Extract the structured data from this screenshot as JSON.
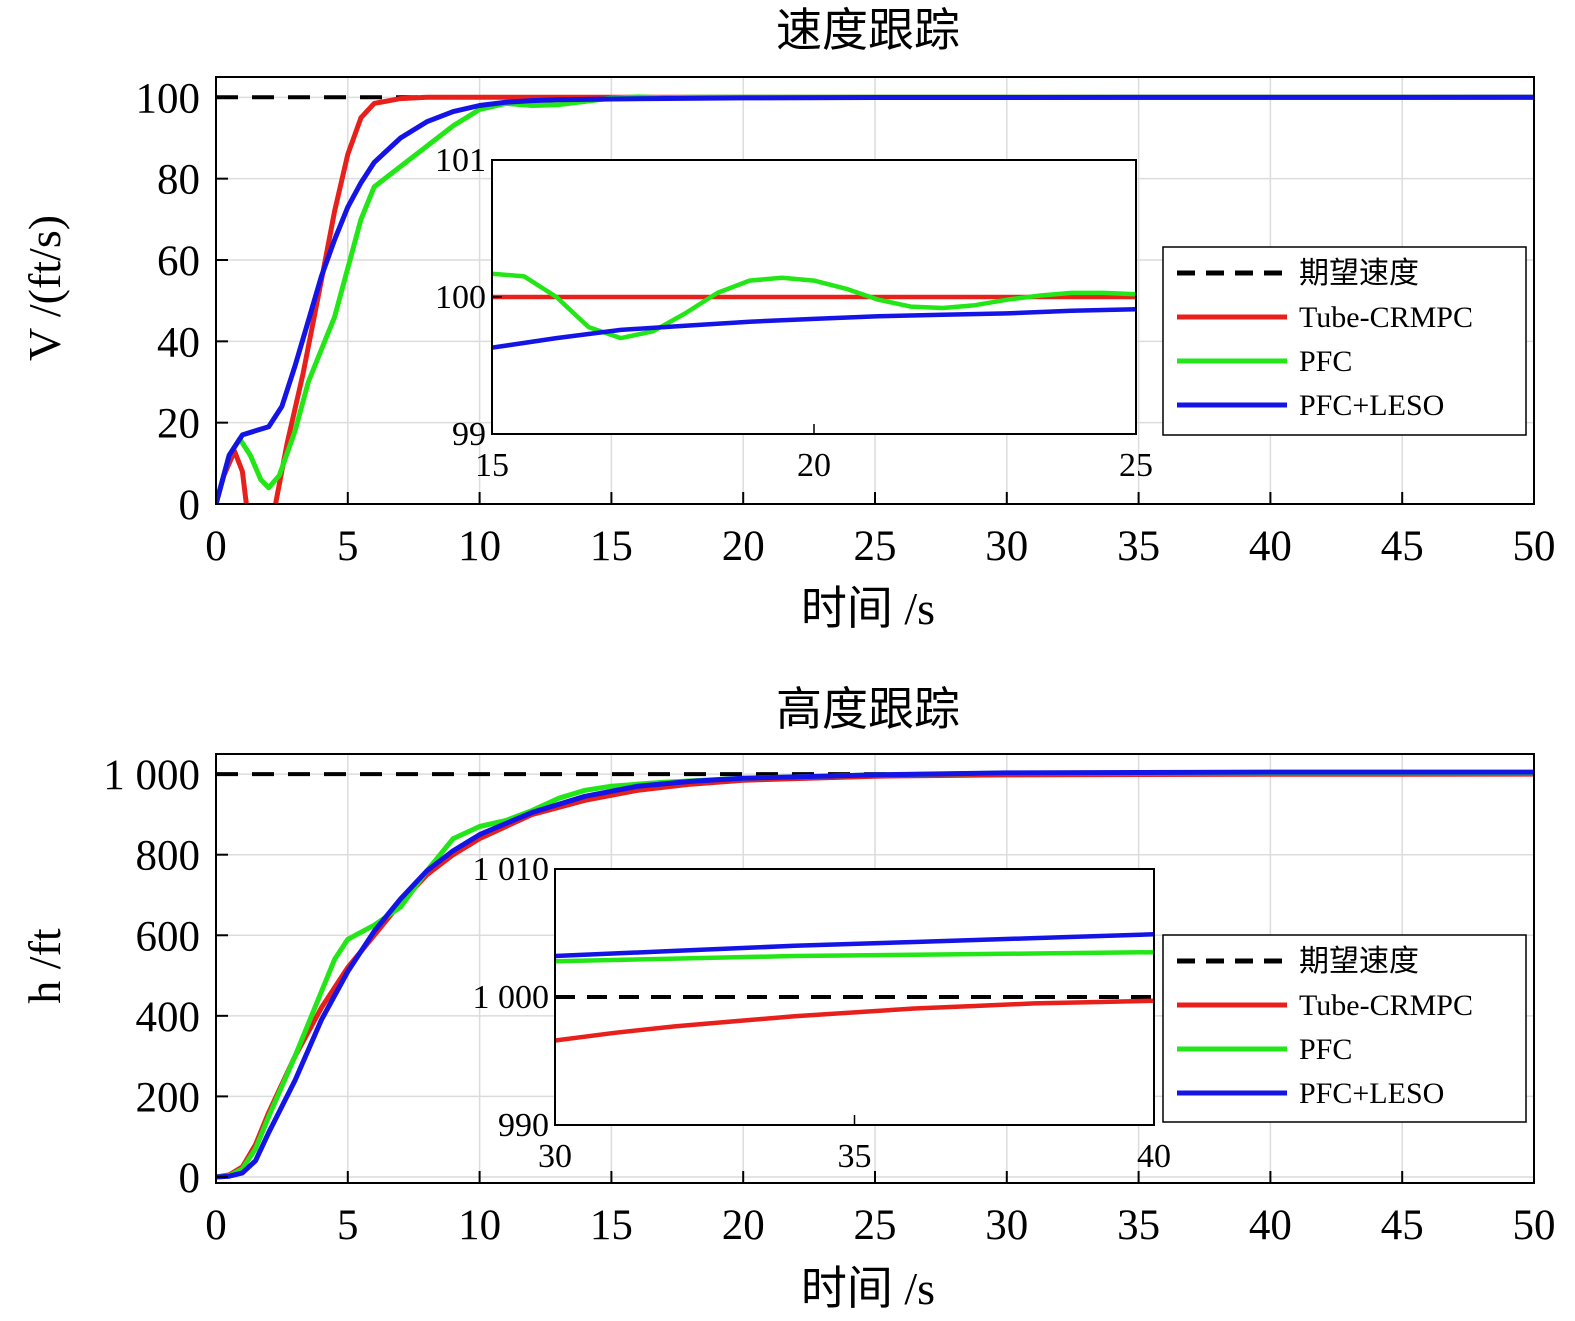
{
  "chart_data": [
    {
      "type": "line",
      "title": "速度跟踪",
      "xlabel": "时间 /s",
      "ylabel": "V /(ft/s)",
      "xlim": [
        0,
        50
      ],
      "ylim": [
        0,
        105
      ],
      "xticks": [
        "0",
        "5",
        "10",
        "15",
        "20",
        "25",
        "30",
        "35",
        "40",
        "45",
        "50"
      ],
      "yticks": [
        "0",
        "20",
        "40",
        "60",
        "80",
        "100"
      ],
      "grid": true,
      "legend": {
        "placement": "right",
        "entries": [
          "期望速度",
          "Tube-CRMPC",
          "PFC",
          "PFC+LESO"
        ]
      },
      "series": [
        {
          "name": "期望速度",
          "color": "#000000",
          "dash": true,
          "points": [
            [
              0,
              100
            ],
            [
              50,
              100
            ]
          ]
        },
        {
          "name": "Tube-CRMPC",
          "color": "#e8201b",
          "points": [
            [
              0,
              0
            ],
            [
              0.3,
              7
            ],
            [
              0.7,
              13
            ],
            [
              1.0,
              8
            ],
            [
              1.3,
              -8
            ],
            [
              1.6,
              -22
            ],
            [
              1.9,
              -18
            ],
            [
              2.2,
              -2
            ],
            [
              2.7,
              15
            ],
            [
              3.3,
              32
            ],
            [
              4.0,
              55
            ],
            [
              4.5,
              72
            ],
            [
              5.0,
              86
            ],
            [
              5.5,
              95
            ],
            [
              6.0,
              98.5
            ],
            [
              7.0,
              99.7
            ],
            [
              8.0,
              100
            ],
            [
              10,
              100
            ],
            [
              50,
              100
            ]
          ]
        },
        {
          "name": "PFC",
          "color": "#22e616",
          "points": [
            [
              0,
              0
            ],
            [
              0.5,
              12
            ],
            [
              0.9,
              16
            ],
            [
              1.3,
              12
            ],
            [
              1.7,
              6
            ],
            [
              2.0,
              4
            ],
            [
              2.4,
              7
            ],
            [
              3.0,
              18
            ],
            [
              3.5,
              30
            ],
            [
              4.0,
              38
            ],
            [
              4.5,
              46
            ],
            [
              5.0,
              58
            ],
            [
              5.5,
              70
            ],
            [
              6.0,
              78
            ],
            [
              7.0,
              83
            ],
            [
              8.0,
              88
            ],
            [
              9.0,
              93
            ],
            [
              10,
              97
            ],
            [
              11,
              98.5
            ],
            [
              12,
              98
            ],
            [
              13,
              98.2
            ],
            [
              14,
              99
            ],
            [
              15,
              99.8
            ],
            [
              16,
              100.1
            ],
            [
              17,
              99.9
            ],
            [
              18,
              100
            ],
            [
              20,
              100
            ],
            [
              50,
              100
            ]
          ]
        },
        {
          "name": "PFC+LESO",
          "color": "#1414e6",
          "points": [
            [
              0,
              0
            ],
            [
              0.5,
              12
            ],
            [
              1.0,
              17
            ],
            [
              1.5,
              18
            ],
            [
              2.0,
              19
            ],
            [
              2.5,
              24
            ],
            [
              3.0,
              34
            ],
            [
              3.5,
              45
            ],
            [
              4.0,
              56
            ],
            [
              4.5,
              65
            ],
            [
              5.0,
              73
            ],
            [
              5.5,
              79
            ],
            [
              6.0,
              84
            ],
            [
              7.0,
              90
            ],
            [
              8.0,
              94
            ],
            [
              9.0,
              96.5
            ],
            [
              10,
              98
            ],
            [
              11,
              98.8
            ],
            [
              12,
              99.2
            ],
            [
              13,
              99.4
            ],
            [
              15,
              99.6
            ],
            [
              20,
              99.85
            ],
            [
              25,
              99.95
            ],
            [
              50,
              100
            ]
          ]
        }
      ],
      "inset": {
        "xlim": [
          15,
          25
        ],
        "ylim": [
          99,
          101
        ],
        "xticks": [
          "15",
          "20",
          "25"
        ],
        "yticks": [
          "99",
          "100",
          "101"
        ],
        "series": [
          {
            "name": "Tube-CRMPC",
            "color": "#e8201b",
            "points": [
              [
                15,
                100
              ],
              [
                25,
                100
              ]
            ]
          },
          {
            "name": "PFC",
            "color": "#22e616",
            "points": [
              [
                15,
                100.17
              ],
              [
                15.5,
                100.15
              ],
              [
                16,
                100.0
              ],
              [
                16.5,
                99.78
              ],
              [
                17,
                99.7
              ],
              [
                17.5,
                99.75
              ],
              [
                18,
                99.88
              ],
              [
                18.5,
                100.03
              ],
              [
                19,
                100.12
              ],
              [
                19.5,
                100.14
              ],
              [
                20,
                100.12
              ],
              [
                20.5,
                100.06
              ],
              [
                21,
                99.98
              ],
              [
                21.5,
                99.93
              ],
              [
                22,
                99.92
              ],
              [
                22.5,
                99.94
              ],
              [
                23,
                99.98
              ],
              [
                23.5,
                100.01
              ],
              [
                24,
                100.03
              ],
              [
                24.5,
                100.03
              ],
              [
                25,
                100.02
              ]
            ]
          },
          {
            "name": "PFC+LESO",
            "color": "#1414e6",
            "points": [
              [
                15,
                99.63
              ],
              [
                16,
                99.7
              ],
              [
                17,
                99.76
              ],
              [
                18,
                99.79
              ],
              [
                19,
                99.82
              ],
              [
                20,
                99.84
              ],
              [
                21,
                99.86
              ],
              [
                22,
                99.87
              ],
              [
                23,
                99.88
              ],
              [
                24,
                99.9
              ],
              [
                25,
                99.91
              ]
            ]
          }
        ]
      }
    },
    {
      "type": "line",
      "title": "高度跟踪",
      "xlabel": "时间 /s",
      "ylabel": "h /ft",
      "xlim": [
        0,
        50
      ],
      "ylim": [
        -15,
        1050
      ],
      "xticks": [
        "0",
        "5",
        "10",
        "15",
        "20",
        "25",
        "30",
        "35",
        "40",
        "45",
        "50"
      ],
      "yticks": [
        "0",
        "200",
        "400",
        "600",
        "800",
        "1 000"
      ],
      "grid": true,
      "legend": {
        "placement": "right",
        "entries": [
          "期望速度",
          "Tube-CRMPC",
          "PFC",
          "PFC+LESO"
        ]
      },
      "series": [
        {
          "name": "期望速度",
          "color": "#000000",
          "dash": true,
          "points": [
            [
              0,
              1000
            ],
            [
              50,
              1000
            ]
          ]
        },
        {
          "name": "Tube-CRMPC",
          "color": "#e8201b",
          "points": [
            [
              0,
              0
            ],
            [
              0.5,
              5
            ],
            [
              1.0,
              25
            ],
            [
              1.5,
              80
            ],
            [
              2.0,
              160
            ],
            [
              3.0,
              300
            ],
            [
              4.0,
              420
            ],
            [
              5.0,
              520
            ],
            [
              6.0,
              600
            ],
            [
              7.0,
              680
            ],
            [
              8.0,
              750
            ],
            [
              9.0,
              800
            ],
            [
              10,
              840
            ],
            [
              12,
              900
            ],
            [
              14,
              935
            ],
            [
              16,
              960
            ],
            [
              18,
              975
            ],
            [
              20,
              985
            ],
            [
              25,
              995
            ],
            [
              30,
              998
            ],
            [
              35,
              999
            ],
            [
              40,
              999.7
            ],
            [
              50,
              1000
            ]
          ]
        },
        {
          "name": "PFC",
          "color": "#22e616",
          "points": [
            [
              0,
              0
            ],
            [
              0.5,
              3
            ],
            [
              1.0,
              20
            ],
            [
              1.5,
              70
            ],
            [
              2.0,
              150
            ],
            [
              3.0,
              300
            ],
            [
              4.0,
              460
            ],
            [
              4.5,
              540
            ],
            [
              5.0,
              590
            ],
            [
              6.0,
              625
            ],
            [
              7.0,
              670
            ],
            [
              8.0,
              760
            ],
            [
              9.0,
              840
            ],
            [
              10,
              870
            ],
            [
              11,
              885
            ],
            [
              12,
              910
            ],
            [
              13,
              940
            ],
            [
              14,
              960
            ],
            [
              15,
              970
            ],
            [
              17,
              980
            ],
            [
              20,
              990
            ],
            [
              25,
              998
            ],
            [
              30,
              1002.5
            ],
            [
              35,
              1003
            ],
            [
              40,
              1003.3
            ],
            [
              50,
              1003.5
            ]
          ]
        },
        {
          "name": "PFC+LESO",
          "color": "#1414e6",
          "points": [
            [
              0,
              0
            ],
            [
              0.5,
              2
            ],
            [
              1.0,
              10
            ],
            [
              1.5,
              40
            ],
            [
              2.0,
              110
            ],
            [
              3.0,
              240
            ],
            [
              4.0,
              390
            ],
            [
              5.0,
              510
            ],
            [
              6.0,
              610
            ],
            [
              7.0,
              690
            ],
            [
              8.0,
              760
            ],
            [
              9.0,
              810
            ],
            [
              10,
              850
            ],
            [
              12,
              905
            ],
            [
              14,
              945
            ],
            [
              16,
              970
            ],
            [
              18,
              982
            ],
            [
              20,
              990
            ],
            [
              25,
              998
            ],
            [
              30,
              1003
            ],
            [
              35,
              1004
            ],
            [
              40,
              1005
            ],
            [
              50,
              1005
            ]
          ]
        }
      ],
      "inset": {
        "xlim": [
          30,
          40
        ],
        "ylim": [
          990,
          1010
        ],
        "xticks": [
          "30",
          "35",
          "40"
        ],
        "yticks": [
          "990",
          "1 000",
          "1 010"
        ],
        "series": [
          {
            "name": "期望速度",
            "color": "#000000",
            "dash": true,
            "points": [
              [
                30,
                1000
              ],
              [
                40,
                1000
              ]
            ]
          },
          {
            "name": "Tube-CRMPC",
            "color": "#e8201b",
            "points": [
              [
                30,
                996.6
              ],
              [
                31,
                997.2
              ],
              [
                32,
                997.7
              ],
              [
                33,
                998.1
              ],
              [
                34,
                998.5
              ],
              [
                35,
                998.8
              ],
              [
                36,
                999.1
              ],
              [
                37,
                999.3
              ],
              [
                38,
                999.5
              ],
              [
                39,
                999.6
              ],
              [
                40,
                999.7
              ]
            ]
          },
          {
            "name": "PFC",
            "color": "#22e616",
            "points": [
              [
                30,
                1002.8
              ],
              [
                32,
                1003.0
              ],
              [
                34,
                1003.2
              ],
              [
                36,
                1003.3
              ],
              [
                38,
                1003.4
              ],
              [
                40,
                1003.5
              ]
            ]
          },
          {
            "name": "PFC+LESO",
            "color": "#1414e6",
            "points": [
              [
                30,
                1003.2
              ],
              [
                32,
                1003.6
              ],
              [
                34,
                1004.0
              ],
              [
                36,
                1004.3
              ],
              [
                38,
                1004.6
              ],
              [
                40,
                1004.9
              ]
            ]
          }
        ]
      }
    }
  ]
}
